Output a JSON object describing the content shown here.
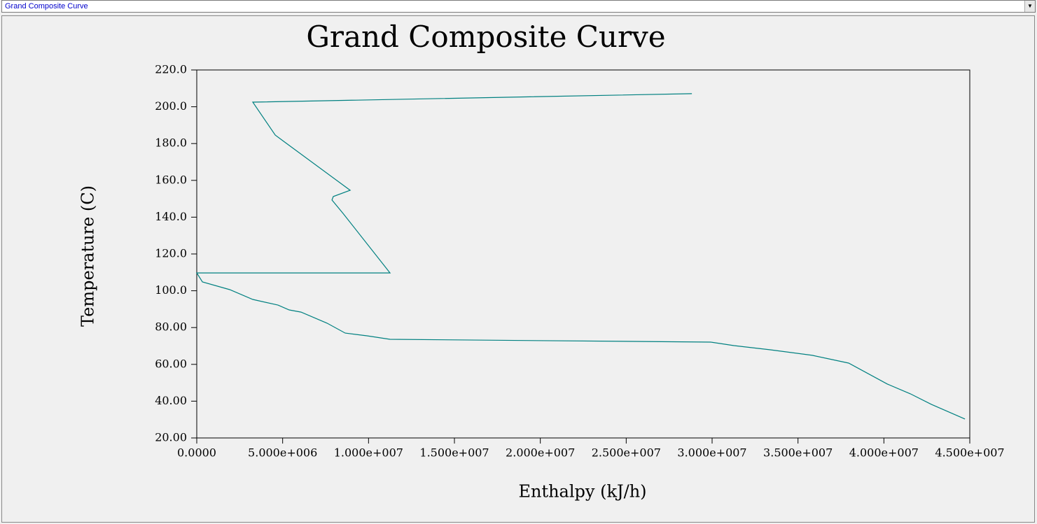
{
  "selector": {
    "label": "Grand Composite Curve"
  },
  "chart_data": {
    "type": "line",
    "title": "Grand Composite Curve",
    "x_label": "Enthalpy (kJ/h)",
    "y_label": "Temperature (C)",
    "xlim": [
      0,
      45000000
    ],
    "ylim": [
      20,
      220
    ],
    "xticks": [
      {
        "value": 0,
        "label": "0.0000"
      },
      {
        "value": 5000000,
        "label": "5.000e+006"
      },
      {
        "value": 10000000,
        "label": "1.000e+007"
      },
      {
        "value": 15000000,
        "label": "1.500e+007"
      },
      {
        "value": 20000000,
        "label": "2.000e+007"
      },
      {
        "value": 25000000,
        "label": "2.500e+007"
      },
      {
        "value": 30000000,
        "label": "3.000e+007"
      },
      {
        "value": 35000000,
        "label": "3.500e+007"
      },
      {
        "value": 40000000,
        "label": "4.000e+007"
      },
      {
        "value": 45000000,
        "label": "4.500e+007"
      }
    ],
    "yticks": [
      {
        "value": 220,
        "label": "220.0"
      },
      {
        "value": 200,
        "label": "200.0"
      },
      {
        "value": 180,
        "label": "180.0"
      },
      {
        "value": 160,
        "label": "160.0"
      },
      {
        "value": 140,
        "label": "140.0"
      },
      {
        "value": 120,
        "label": "120.0"
      },
      {
        "value": 100,
        "label": "100.0"
      },
      {
        "value": 80,
        "label": "80.00"
      },
      {
        "value": 60,
        "label": "60.00"
      },
      {
        "value": 40,
        "label": "40.00"
      },
      {
        "value": 20,
        "label": "20.00"
      }
    ],
    "series": [
      {
        "color": "#008080",
        "x": [
          28820000,
          3260000,
          4570000,
          5060000,
          8930000,
          7950000,
          7870000,
          8520000,
          11250000,
          0,
          330000,
          1920000,
          3260000,
          4730000,
          5380000,
          6070000,
          7580000,
          8640000,
          9910000,
          11250000,
          29920000,
          31270000,
          33390000,
          35830000,
          37950000,
          40200000,
          41540000,
          42760000,
          44720000
        ],
        "values": [
          207.1,
          202.5,
          184.6,
          181.2,
          154.6,
          151.2,
          149.3,
          142.0,
          109.7,
          109.7,
          104.8,
          100.6,
          95.3,
          92.2,
          89.6,
          88.4,
          82.4,
          77.0,
          75.5,
          73.6,
          72.1,
          70.2,
          67.9,
          64.9,
          60.7,
          49.3,
          44.0,
          38.3,
          30.3
        ]
      }
    ]
  }
}
